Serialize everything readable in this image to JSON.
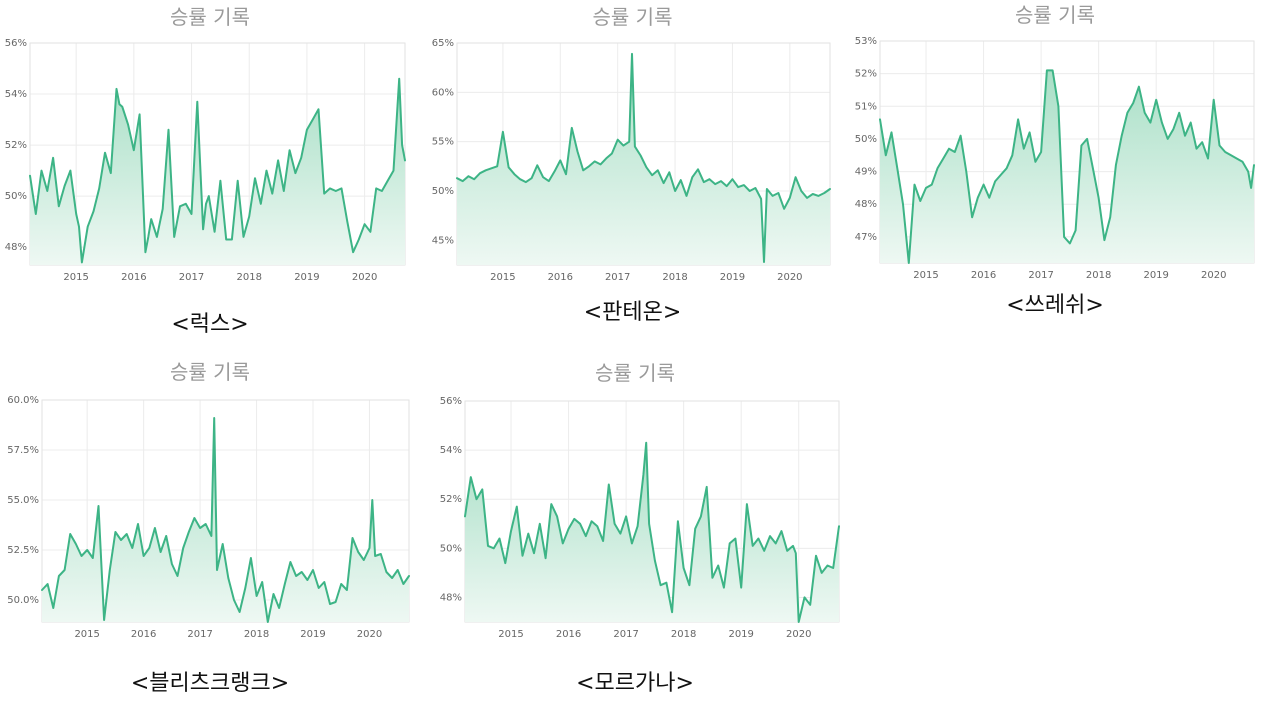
{
  "colors": {
    "line": "#3db486",
    "area_top": "#a8dfc6",
    "area_bottom": "#eef8f3",
    "grid": "#ececec",
    "frame": "#e2e2e2"
  },
  "chart_data": [
    {
      "type": "area",
      "title": "승률 기록",
      "caption": "<럭스>",
      "ylim": [
        47.3,
        56.0
      ],
      "y_ticks": [
        48,
        50,
        52,
        54,
        56
      ],
      "y_tick_labels": [
        "48%",
        "50%",
        "52%",
        "54%",
        "56%"
      ],
      "x_range": [
        2014.2,
        2020.7
      ],
      "x_ticks": [
        2015,
        2016,
        2017,
        2018,
        2019,
        2020
      ],
      "x_tick_labels": [
        "2015",
        "2016",
        "2017",
        "2018",
        "2019",
        "2020"
      ],
      "series": [
        {
          "x": [
            2014.2,
            2014.3,
            2014.4,
            2014.5,
            2014.6,
            2014.7,
            2014.8,
            2014.9,
            2015.0,
            2015.05,
            2015.1,
            2015.2,
            2015.3,
            2015.4,
            2015.5,
            2015.6,
            2015.7,
            2015.75,
            2015.8,
            2015.9,
            2016.0,
            2016.1,
            2016.2,
            2016.25,
            2016.3,
            2016.4,
            2016.5,
            2016.6,
            2016.7,
            2016.8,
            2016.9,
            2017.0,
            2017.1,
            2017.2,
            2017.25,
            2017.3,
            2017.4,
            2017.5,
            2017.6,
            2017.7,
            2017.8,
            2017.9,
            2018.0,
            2018.1,
            2018.2,
            2018.3,
            2018.4,
            2018.5,
            2018.6,
            2018.7,
            2018.8,
            2018.9,
            2019.0,
            2019.1,
            2019.2,
            2019.3,
            2019.4,
            2019.5,
            2019.6,
            2019.7,
            2019.8,
            2019.9,
            2020.0,
            2020.1,
            2020.2,
            2020.3,
            2020.4,
            2020.5,
            2020.6,
            2020.65,
            2020.7
          ],
          "y": [
            50.8,
            49.3,
            51.0,
            50.2,
            51.5,
            49.6,
            50.4,
            51.0,
            49.3,
            48.8,
            47.4,
            48.8,
            49.4,
            50.3,
            51.7,
            50.9,
            54.2,
            53.6,
            53.5,
            52.8,
            51.8,
            53.2,
            47.8,
            48.4,
            49.1,
            48.4,
            49.5,
            52.6,
            48.4,
            49.6,
            49.7,
            49.3,
            53.7,
            48.7,
            49.7,
            50.0,
            48.6,
            50.6,
            48.3,
            48.3,
            50.6,
            48.4,
            49.2,
            50.7,
            49.7,
            51.0,
            50.1,
            51.4,
            50.2,
            51.8,
            50.9,
            51.5,
            52.6,
            53.0,
            53.4,
            50.1,
            50.3,
            50.2,
            50.3,
            49.0,
            47.8,
            48.3,
            48.9,
            48.6,
            50.3,
            50.2,
            50.6,
            51.0,
            54.6,
            52.0,
            51.4
          ]
        }
      ]
    },
    {
      "type": "area",
      "title": "승률 기록",
      "caption": "<판테온>",
      "ylim": [
        42.5,
        65.0
      ],
      "y_ticks": [
        45,
        50,
        55,
        60,
        65
      ],
      "y_tick_labels": [
        "45%",
        "50%",
        "55%",
        "60%",
        "65%"
      ],
      "x_range": [
        2014.2,
        2020.7
      ],
      "x_ticks": [
        2015,
        2016,
        2017,
        2018,
        2019,
        2020
      ],
      "x_tick_labels": [
        "2015",
        "2016",
        "2017",
        "2018",
        "2019",
        "2020"
      ],
      "series": [
        {
          "x": [
            2014.2,
            2014.3,
            2014.4,
            2014.5,
            2014.6,
            2014.7,
            2014.8,
            2014.9,
            2015.0,
            2015.1,
            2015.2,
            2015.3,
            2015.4,
            2015.5,
            2015.6,
            2015.7,
            2015.8,
            2015.9,
            2016.0,
            2016.1,
            2016.2,
            2016.3,
            2016.4,
            2016.5,
            2016.6,
            2016.7,
            2016.8,
            2016.9,
            2017.0,
            2017.1,
            2017.2,
            2017.25,
            2017.3,
            2017.4,
            2017.5,
            2017.6,
            2017.7,
            2017.8,
            2017.9,
            2018.0,
            2018.1,
            2018.2,
            2018.3,
            2018.4,
            2018.5,
            2018.6,
            2018.7,
            2018.8,
            2018.9,
            2019.0,
            2019.1,
            2019.2,
            2019.3,
            2019.4,
            2019.5,
            2019.55,
            2019.6,
            2019.7,
            2019.8,
            2019.9,
            2020.0,
            2020.1,
            2020.2,
            2020.3,
            2020.4,
            2020.5,
            2020.6,
            2020.7
          ],
          "y": [
            51.3,
            51.0,
            51.5,
            51.2,
            51.8,
            52.1,
            52.3,
            52.5,
            56.0,
            52.4,
            51.7,
            51.2,
            50.9,
            51.3,
            52.6,
            51.4,
            51.0,
            52.0,
            53.1,
            51.7,
            56.4,
            54.0,
            52.1,
            52.5,
            53.0,
            52.7,
            53.3,
            53.8,
            55.2,
            54.6,
            55.0,
            63.9,
            54.5,
            53.6,
            52.4,
            51.6,
            52.1,
            50.8,
            51.9,
            50.0,
            51.1,
            49.5,
            51.4,
            52.2,
            50.9,
            51.2,
            50.7,
            51.0,
            50.5,
            51.2,
            50.4,
            50.6,
            50.0,
            50.3,
            49.2,
            42.8,
            50.2,
            49.5,
            49.8,
            48.2,
            49.3,
            51.4,
            50.0,
            49.3,
            49.7,
            49.5,
            49.8,
            50.2
          ]
        }
      ]
    },
    {
      "type": "area",
      "title": "승률 기록",
      "caption": "<쓰레쉬>",
      "ylim": [
        46.2,
        53.0
      ],
      "y_ticks": [
        47,
        48,
        49,
        50,
        51,
        52,
        53
      ],
      "y_tick_labels": [
        "47%",
        "48%",
        "49%",
        "50%",
        "51%",
        "52%",
        "53%"
      ],
      "x_range": [
        2014.2,
        2020.7
      ],
      "x_ticks": [
        2015,
        2016,
        2017,
        2018,
        2019,
        2020
      ],
      "x_tick_labels": [
        "2015",
        "2016",
        "2017",
        "2018",
        "2019",
        "2020"
      ],
      "series": [
        {
          "x": [
            2014.2,
            2014.3,
            2014.4,
            2014.5,
            2014.6,
            2014.7,
            2014.8,
            2014.9,
            2015.0,
            2015.1,
            2015.2,
            2015.3,
            2015.4,
            2015.5,
            2015.6,
            2015.7,
            2015.8,
            2015.9,
            2016.0,
            2016.1,
            2016.2,
            2016.3,
            2016.4,
            2016.5,
            2016.6,
            2016.7,
            2016.8,
            2016.9,
            2017.0,
            2017.1,
            2017.2,
            2017.3,
            2017.4,
            2017.5,
            2017.6,
            2017.7,
            2017.8,
            2017.9,
            2018.0,
            2018.1,
            2018.2,
            2018.3,
            2018.4,
            2018.5,
            2018.6,
            2018.7,
            2018.8,
            2018.9,
            2019.0,
            2019.1,
            2019.2,
            2019.3,
            2019.4,
            2019.5,
            2019.6,
            2019.7,
            2019.8,
            2019.9,
            2020.0,
            2020.1,
            2020.2,
            2020.3,
            2020.4,
            2020.5,
            2020.6,
            2020.65,
            2020.7
          ],
          "y": [
            50.6,
            49.5,
            50.2,
            49.1,
            48.0,
            46.2,
            48.6,
            48.1,
            48.5,
            48.6,
            49.1,
            49.4,
            49.7,
            49.6,
            50.1,
            49.0,
            47.6,
            48.2,
            48.6,
            48.2,
            48.7,
            48.9,
            49.1,
            49.5,
            50.6,
            49.7,
            50.2,
            49.3,
            49.6,
            52.1,
            52.1,
            51.0,
            47.0,
            46.8,
            47.2,
            49.8,
            50.0,
            49.1,
            48.2,
            46.9,
            47.6,
            49.2,
            50.1,
            50.8,
            51.1,
            51.6,
            50.8,
            50.5,
            51.2,
            50.5,
            50.0,
            50.3,
            50.8,
            50.1,
            50.5,
            49.7,
            49.9,
            49.4,
            51.2,
            49.8,
            49.6,
            49.5,
            49.4,
            49.3,
            49.0,
            48.5,
            49.2
          ]
        }
      ]
    },
    {
      "type": "area",
      "title": "승률 기록",
      "caption": "<블리츠크랭크>",
      "ylim": [
        48.9,
        60.0
      ],
      "y_ticks": [
        50.0,
        52.5,
        55.0,
        57.5,
        60.0
      ],
      "y_tick_labels": [
        "50.0%",
        "52.5%",
        "55.0%",
        "57.5%",
        "60.0%"
      ],
      "x_range": [
        2014.2,
        2020.7
      ],
      "x_ticks": [
        2015,
        2016,
        2017,
        2018,
        2019,
        2020
      ],
      "x_tick_labels": [
        "2015",
        "2016",
        "2017",
        "2018",
        "2019",
        "2020"
      ],
      "series": [
        {
          "x": [
            2014.2,
            2014.3,
            2014.4,
            2014.5,
            2014.6,
            2014.7,
            2014.8,
            2014.9,
            2015.0,
            2015.1,
            2015.2,
            2015.3,
            2015.4,
            2015.5,
            2015.6,
            2015.7,
            2015.8,
            2015.9,
            2016.0,
            2016.1,
            2016.2,
            2016.3,
            2016.4,
            2016.5,
            2016.6,
            2016.7,
            2016.8,
            2016.9,
            2017.0,
            2017.1,
            2017.2,
            2017.25,
            2017.3,
            2017.4,
            2017.5,
            2017.6,
            2017.7,
            2017.8,
            2017.9,
            2018.0,
            2018.1,
            2018.2,
            2018.3,
            2018.4,
            2018.5,
            2018.6,
            2018.7,
            2018.8,
            2018.9,
            2019.0,
            2019.1,
            2019.2,
            2019.3,
            2019.4,
            2019.5,
            2019.6,
            2019.7,
            2019.8,
            2019.9,
            2020.0,
            2020.05,
            2020.1,
            2020.2,
            2020.3,
            2020.4,
            2020.5,
            2020.6,
            2020.7
          ],
          "y": [
            50.5,
            50.8,
            49.6,
            51.2,
            51.5,
            53.3,
            52.8,
            52.2,
            52.5,
            52.1,
            54.7,
            49.0,
            51.5,
            53.4,
            53.0,
            53.3,
            52.6,
            53.8,
            52.2,
            52.6,
            53.6,
            52.4,
            53.2,
            51.8,
            51.2,
            52.6,
            53.4,
            54.1,
            53.6,
            53.8,
            53.2,
            59.1,
            51.5,
            52.8,
            51.1,
            50.0,
            49.4,
            50.6,
            52.1,
            50.2,
            50.9,
            48.9,
            50.3,
            49.6,
            50.8,
            51.9,
            51.2,
            51.4,
            51.0,
            51.5,
            50.6,
            50.9,
            49.8,
            49.9,
            50.8,
            50.5,
            53.1,
            52.4,
            52.0,
            52.6,
            55.0,
            52.2,
            52.3,
            51.4,
            51.1,
            51.5,
            50.8,
            51.2
          ]
        }
      ]
    },
    {
      "type": "area",
      "title": "승률 기록",
      "caption": "<모르가나>",
      "ylim": [
        47.0,
        56.0
      ],
      "y_ticks": [
        48,
        50,
        52,
        54,
        56
      ],
      "y_tick_labels": [
        "48%",
        "50%",
        "52%",
        "54%",
        "56%"
      ],
      "x_range": [
        2014.2,
        2020.7
      ],
      "x_ticks": [
        2015,
        2016,
        2017,
        2018,
        2019,
        2020
      ],
      "x_tick_labels": [
        "2015",
        "2016",
        "2017",
        "2018",
        "2019",
        "2020"
      ],
      "series": [
        {
          "x": [
            2014.2,
            2014.3,
            2014.4,
            2014.5,
            2014.6,
            2014.7,
            2014.8,
            2014.9,
            2015.0,
            2015.1,
            2015.2,
            2015.3,
            2015.4,
            2015.5,
            2015.6,
            2015.7,
            2015.8,
            2015.9,
            2016.0,
            2016.1,
            2016.2,
            2016.3,
            2016.4,
            2016.5,
            2016.6,
            2016.7,
            2016.8,
            2016.9,
            2017.0,
            2017.1,
            2017.2,
            2017.3,
            2017.35,
            2017.4,
            2017.5,
            2017.6,
            2017.7,
            2017.8,
            2017.9,
            2018.0,
            2018.1,
            2018.2,
            2018.3,
            2018.4,
            2018.5,
            2018.6,
            2018.7,
            2018.8,
            2018.9,
            2019.0,
            2019.1,
            2019.2,
            2019.3,
            2019.4,
            2019.5,
            2019.6,
            2019.7,
            2019.8,
            2019.9,
            2019.95,
            2020.0,
            2020.1,
            2020.2,
            2020.3,
            2020.4,
            2020.5,
            2020.6,
            2020.7
          ],
          "y": [
            51.3,
            52.9,
            52.0,
            52.4,
            50.1,
            50.0,
            50.4,
            49.4,
            50.7,
            51.7,
            49.7,
            50.6,
            49.8,
            51.0,
            49.6,
            51.8,
            51.3,
            50.2,
            50.8,
            51.2,
            51.0,
            50.5,
            51.1,
            50.9,
            50.3,
            52.6,
            51.0,
            50.6,
            51.3,
            50.2,
            50.9,
            53.0,
            54.3,
            51.0,
            49.5,
            48.5,
            48.6,
            47.4,
            51.1,
            49.2,
            48.5,
            50.8,
            51.3,
            52.5,
            48.8,
            49.3,
            48.4,
            50.2,
            50.4,
            48.4,
            51.8,
            50.1,
            50.4,
            49.9,
            50.5,
            50.2,
            50.7,
            49.9,
            50.1,
            49.8,
            47.0,
            48.0,
            47.7,
            49.7,
            49.0,
            49.3,
            49.2,
            50.9
          ]
        }
      ]
    }
  ]
}
